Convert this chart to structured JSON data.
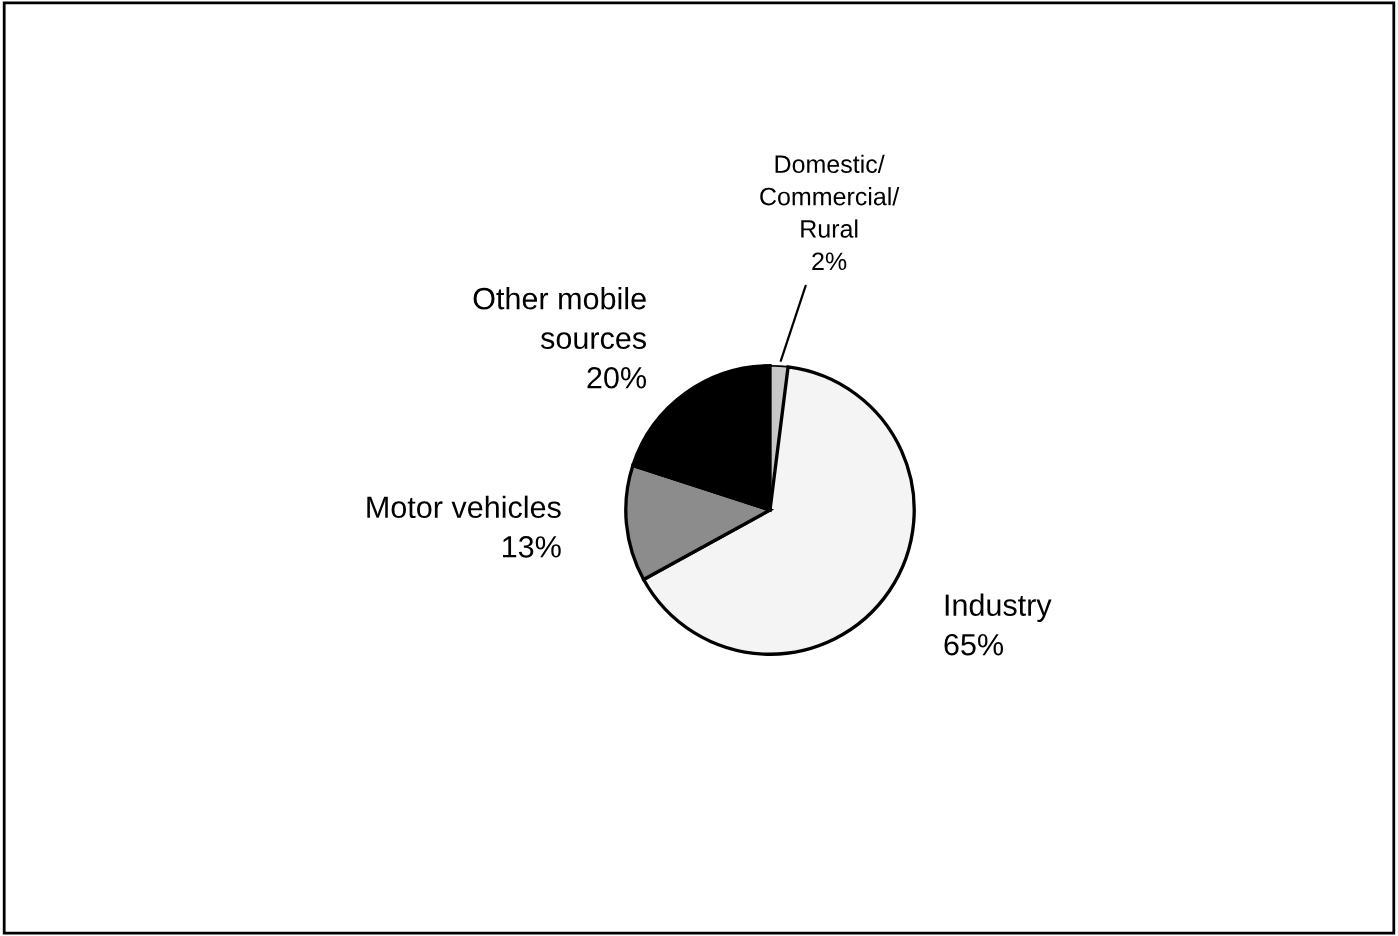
{
  "chart_data": {
    "type": "pie",
    "categories": [
      "Domestic/\nCommercial/\nRural",
      "Industry",
      "Motor vehicles",
      "Other mobile\nsources"
    ],
    "values": [
      2,
      65,
      13,
      20
    ],
    "value_labels": [
      "2%",
      "65%",
      "13%",
      "20%"
    ],
    "colors": [
      "#c8c8c8",
      "#f4f4f4",
      "#8c8c8c",
      "#000000"
    ]
  }
}
